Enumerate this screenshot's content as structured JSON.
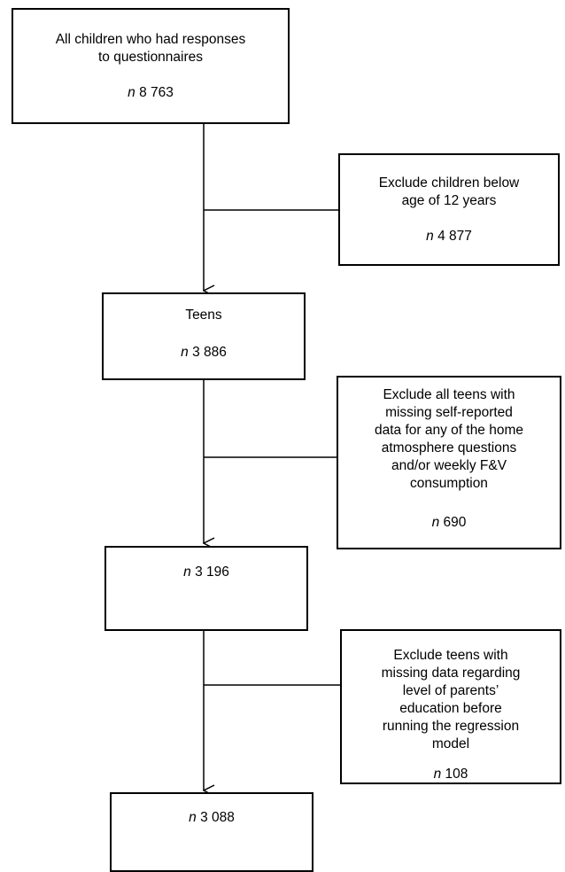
{
  "flow": {
    "start": {
      "lines": [
        "All children who had responses",
        "to questionnaires"
      ],
      "n_prefix": "n",
      "n_value": "8 763"
    },
    "exclusion1": {
      "lines": [
        "Exclude children below",
        "age of 12 years"
      ],
      "n_prefix": "n",
      "n_value": "4 877"
    },
    "teens": {
      "lines": [
        "Teens"
      ],
      "n_prefix": "n",
      "n_value": "3 886"
    },
    "exclusion2": {
      "lines": [
        "Exclude all teens with",
        "missing self-reported",
        "data for any of the home",
        "atmosphere questions",
        "and/or weekly F&V",
        "consumption"
      ],
      "n_prefix": "n",
      "n_value": "690"
    },
    "step3": {
      "n_prefix": "n",
      "n_value": "3 196"
    },
    "exclusion3": {
      "lines": [
        "Exclude teens with",
        "missing data regarding",
        "level of parents’",
        "education before",
        "running the regression",
        "model"
      ],
      "n_prefix": "n",
      "n_value": "108"
    },
    "final": {
      "n_prefix": "n",
      "n_value": "3 088"
    }
  }
}
